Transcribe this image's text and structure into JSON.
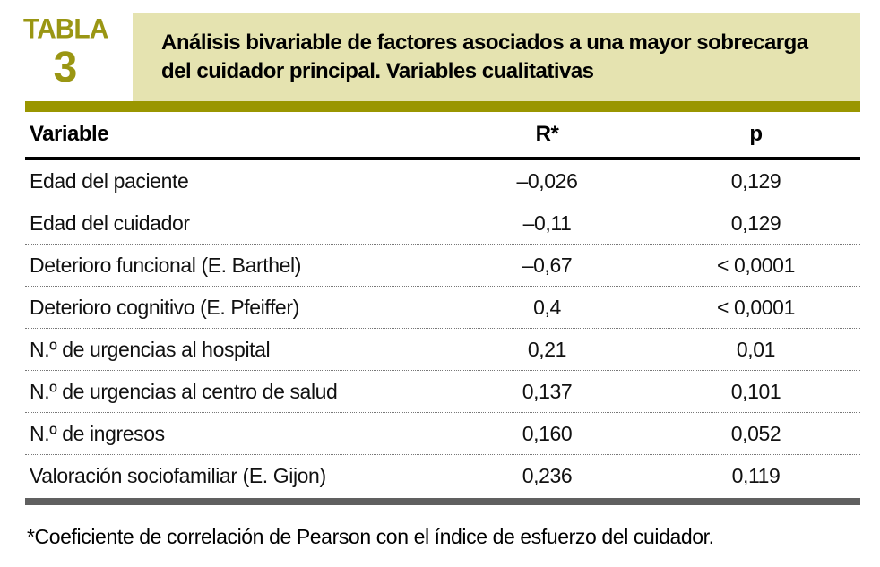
{
  "label": {
    "word": "TABLA",
    "number": "3"
  },
  "title": "Análisis bivariable de factores asociados a una mayor sobrecarga del cuidador principal. Variables cualitativas",
  "table": {
    "headers": [
      "Variable",
      "R*",
      "p"
    ],
    "rows": [
      [
        "Edad del paciente",
        "–0,026",
        "0,129"
      ],
      [
        "Edad del cuidador",
        "–0,11",
        "0,129"
      ],
      [
        "Deterioro funcional (E. Barthel)",
        "–0,67",
        "< 0,0001"
      ],
      [
        "Deterioro cognitivo (E. Pfeiffer)",
        "0,4",
        "< 0,0001"
      ],
      [
        "N.º de urgencias al hospital",
        "0,21",
        "0,01"
      ],
      [
        "N.º de urgencias al centro de salud",
        "0,137",
        "0,101"
      ],
      [
        "N.º de ingresos",
        "0,160",
        "0,052"
      ],
      [
        "Valoración sociofamiliar (E. Gijon)",
        "0,236",
        "0,119"
      ]
    ]
  },
  "footnote": "*Coeficiente de correlación de Pearson con el índice de esfuerzo del cuidador.",
  "colors": {
    "accent_olive": "#9a9600",
    "band_background": "#e5e3b0",
    "bottom_bar_gray": "#606060"
  }
}
